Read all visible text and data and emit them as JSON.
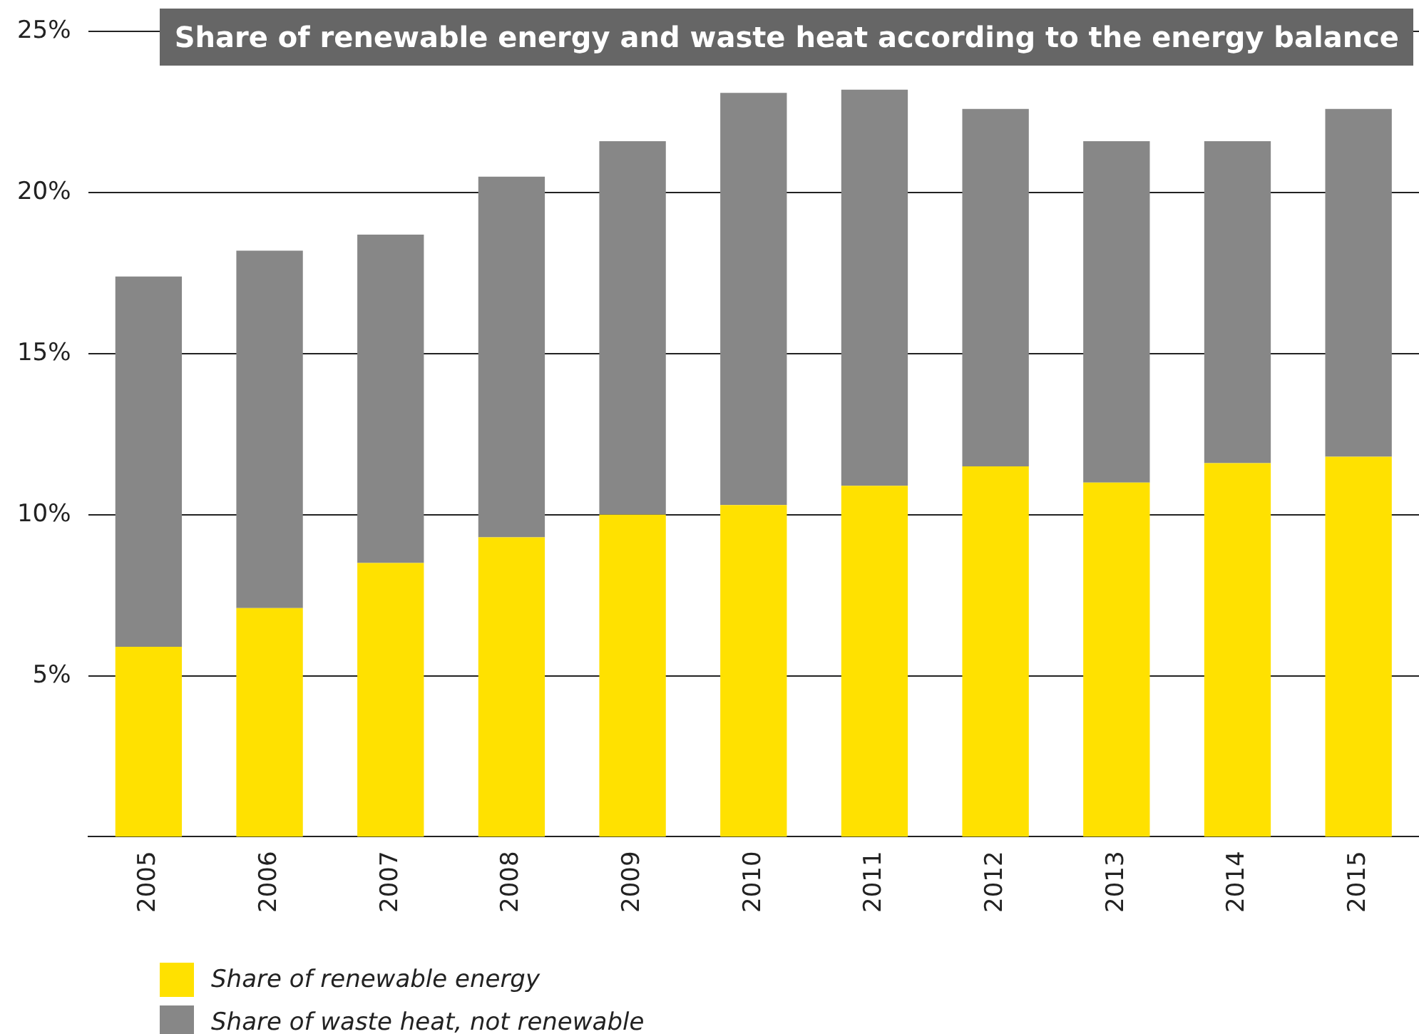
{
  "chart_data": {
    "type": "bar",
    "title": "Share of renewable energy and waste heat according to the energy balance",
    "categories": [
      "2005",
      "2006",
      "2007",
      "2008",
      "2009",
      "2010",
      "2011",
      "2012",
      "2013",
      "2014",
      "2015"
    ],
    "stacked": true,
    "series": [
      {
        "name": "Share of renewable energy",
        "color": "#ffe100",
        "values": [
          5.9,
          7.1,
          8.5,
          9.3,
          10.0,
          10.3,
          10.9,
          11.5,
          11.0,
          11.6,
          11.8
        ]
      },
      {
        "name": "Share of waste heat, not renewable",
        "color": "#878787",
        "values": [
          11.5,
          11.1,
          10.2,
          11.2,
          11.6,
          12.8,
          12.3,
          11.1,
          10.6,
          10.0,
          10.8
        ]
      }
    ],
    "ylim": [
      0,
      25
    ],
    "yticks": [
      {
        "value": 5,
        "label": "5%"
      },
      {
        "value": 10,
        "label": "10%"
      },
      {
        "value": 15,
        "label": "15%"
      },
      {
        "value": 20,
        "label": "20%"
      },
      {
        "value": 25,
        "label": "25%"
      }
    ],
    "grid": "y",
    "legend": "bottom left"
  }
}
